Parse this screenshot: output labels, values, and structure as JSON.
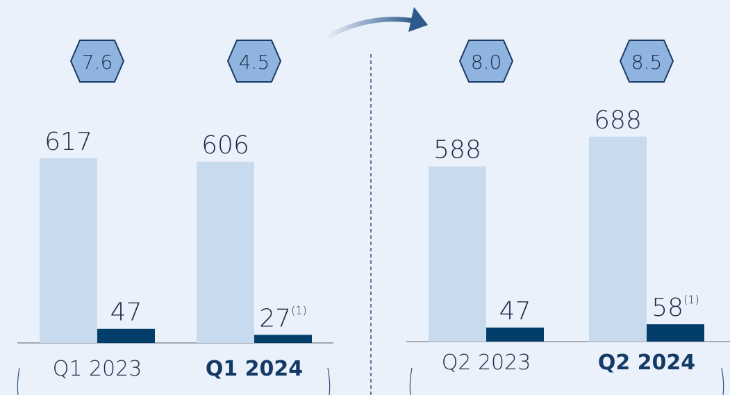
{
  "chart_data": [
    {
      "type": "bar",
      "categories": [
        "Q1 2023",
        "Q1 2024"
      ],
      "highlight": [
        false,
        true
      ],
      "series": [
        {
          "color": "#c8daee",
          "values": [
            617,
            606
          ]
        },
        {
          "color": "#023e69",
          "values": [
            47,
            27
          ],
          "footnotes": [
            null,
            "(1)"
          ]
        }
      ],
      "badges": {
        "values": [
          7.6,
          4.5
        ],
        "value_labels": [
          "7.6",
          "4.5"
        ]
      },
      "ylim": [
        0,
        1100
      ]
    },
    {
      "type": "bar",
      "categories": [
        "Q2 2023",
        "Q2 2024"
      ],
      "highlight": [
        false,
        true
      ],
      "series": [
        {
          "color": "#c8daee",
          "values": [
            588,
            688
          ]
        },
        {
          "color": "#023e69",
          "values": [
            47,
            58
          ],
          "footnotes": [
            null,
            "(1)"
          ]
        }
      ],
      "badges": {
        "values": [
          8,
          8.5
        ],
        "value_labels": [
          "8.0",
          "8.5"
        ]
      },
      "ylim": [
        0,
        1100
      ]
    }
  ]
}
